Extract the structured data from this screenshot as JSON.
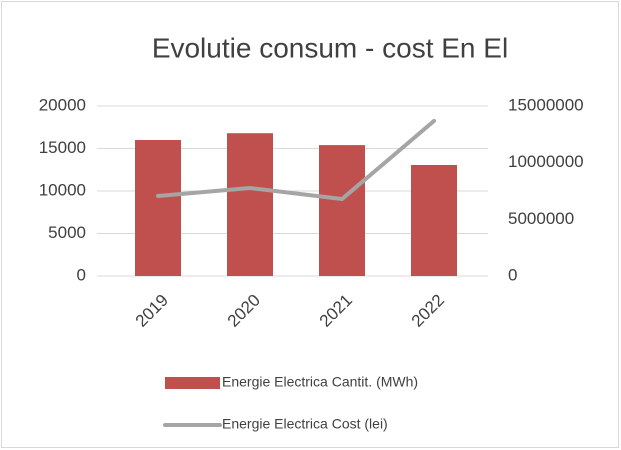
{
  "chart_data": {
    "type": "bar",
    "title": "Evolutie consum - cost En El",
    "categories": [
      "2019",
      "2020",
      "2021",
      "2022"
    ],
    "series": [
      {
        "name": "Energie Electrica Cantit. (MWh)",
        "type": "bar",
        "color": "#c0504d",
        "values": [
          16000,
          16800,
          15400,
          13060
        ]
      },
      {
        "name": "Energie Electrica Cost (lei)",
        "type": "line",
        "axis": "y2",
        "color": "#a5a5a5",
        "values": [
          7060000,
          7760000,
          6790000,
          13680000
        ]
      }
    ],
    "ylim": [
      0,
      20000
    ],
    "yticks": [
      0,
      5000,
      10000,
      15000,
      20000
    ],
    "y2lim": [
      0,
      15000000
    ],
    "y2ticks": [
      0,
      5000000,
      10000000,
      15000000
    ],
    "grid": true,
    "legend": "bottom"
  }
}
